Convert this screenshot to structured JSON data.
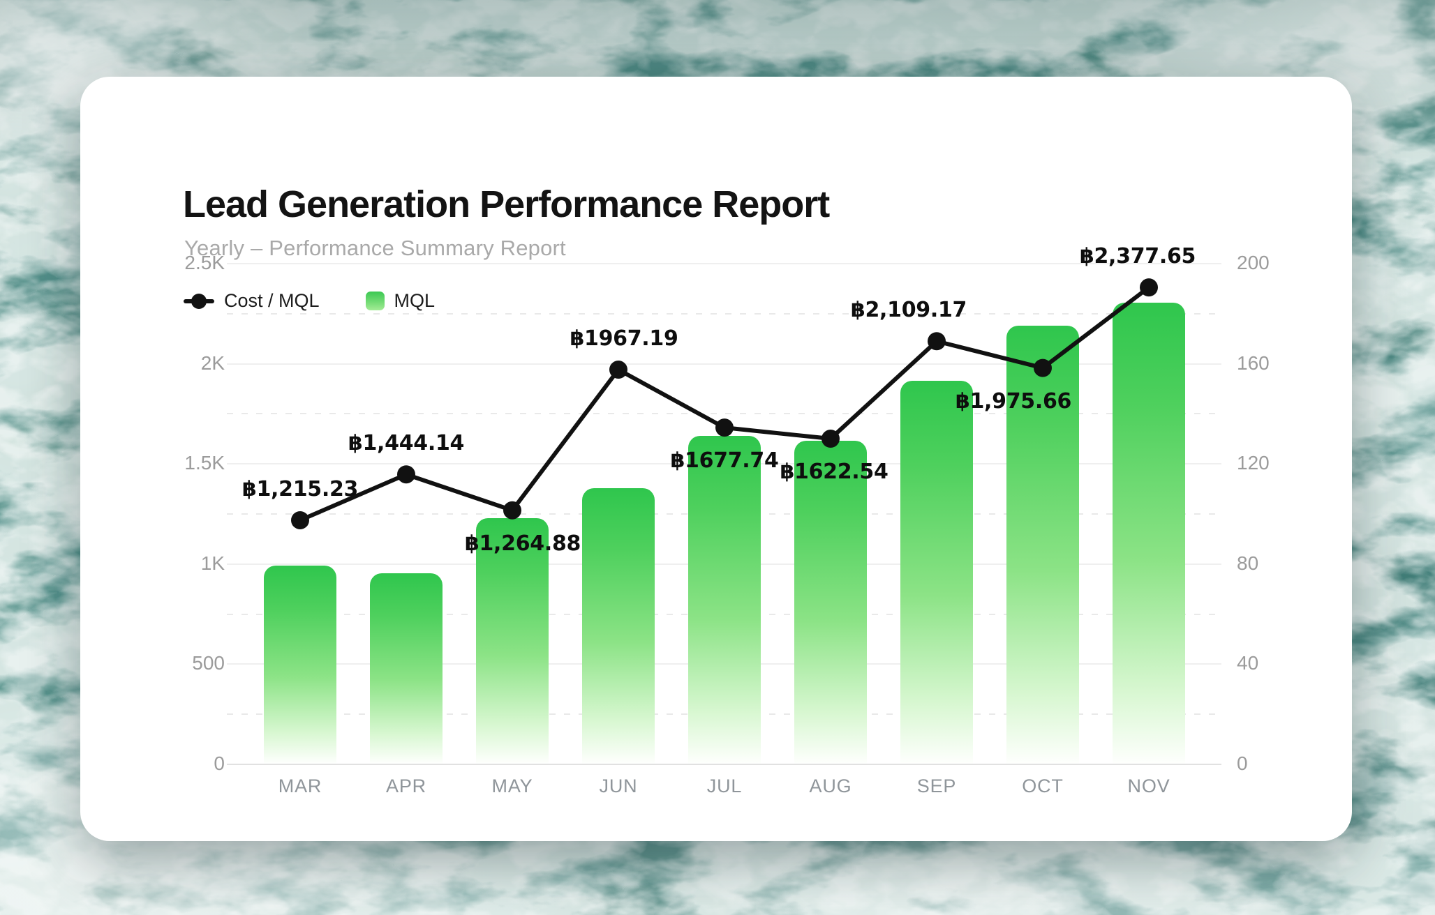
{
  "header": {
    "title": "Lead Generation Performance Report",
    "subtitle": "Yearly – Performance Summary Report"
  },
  "legend": {
    "items": [
      {
        "label": "Cost / MQL",
        "marker": "line-dot",
        "color": "#111111"
      },
      {
        "label": "MQL",
        "marker": "gradient-square",
        "color": "#3cc853"
      }
    ]
  },
  "colors": {
    "bar_gradient_top": "#2fc64d",
    "bar_gradient_bottom": "#ffffff",
    "line": "#111111",
    "title_text": "#131313",
    "subtitle_text": "#a9a9a9",
    "axis_text": "#9b9b9b",
    "card_background": "#ffffff"
  },
  "chart_data": {
    "type": "bar",
    "title": "Lead Generation Performance Report",
    "subtitle": "Yearly – Performance Summary Report",
    "categories": [
      "MAR",
      "APR",
      "MAY",
      "JUN",
      "JUL",
      "AUG",
      "SEP",
      "OCT",
      "NOV"
    ],
    "series": [
      {
        "name": "MQL",
        "kind": "bar",
        "axis": "right",
        "values": [
          79,
          76,
          98,
          110,
          131,
          129,
          153,
          175,
          184
        ]
      },
      {
        "name": "Cost / MQL",
        "kind": "line",
        "axis": "left",
        "values": [
          1215.23,
          1444.14,
          1264.88,
          1967.19,
          1677.74,
          1622.54,
          2109.17,
          1975.66,
          2377.65
        ],
        "point_labels": [
          "฿1,215.23",
          "฿1,444.14",
          "฿1,264.88",
          "฿1967.19",
          "฿1677.74",
          "฿1622.54",
          "฿2,109.17",
          "฿1,975.66",
          "฿2,377.65"
        ]
      }
    ],
    "left_axis": {
      "tick_labels": [
        "2.5K",
        "2K",
        "1.5K",
        "1K",
        "500",
        "0"
      ],
      "range": [
        0,
        2500
      ]
    },
    "right_axis": {
      "tick_labels": [
        "200",
        "160",
        "120",
        "80",
        "40",
        "0"
      ],
      "range": [
        0,
        200
      ]
    },
    "layout_hints": {
      "grid_major": "solid",
      "grid_minor": "dashed-between-majors",
      "legend_position": "top-left",
      "label_placement": [
        "above",
        "above",
        "below",
        "above",
        "below",
        "below",
        "above",
        "below",
        "above"
      ],
      "label_dx": [
        0,
        0,
        15,
        8,
        0,
        5,
        -40,
        -42,
        -16
      ]
    }
  }
}
